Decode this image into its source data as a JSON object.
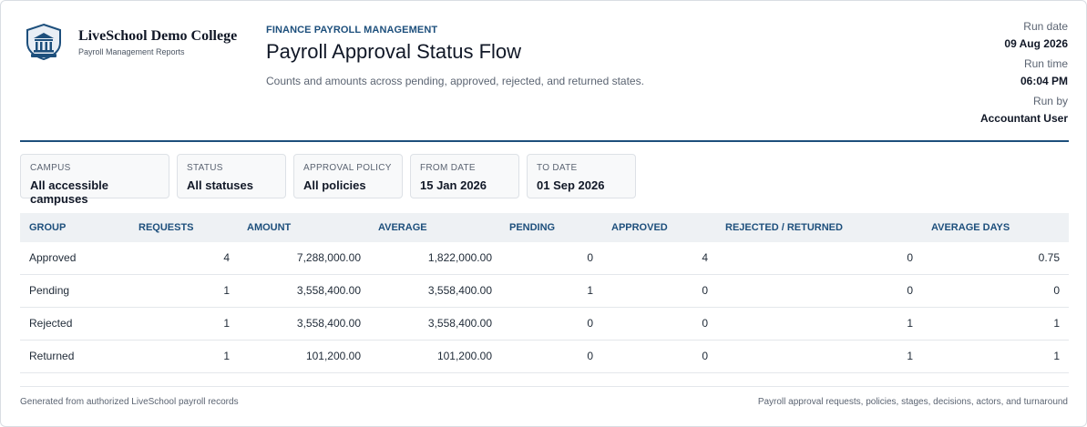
{
  "org": {
    "name": "LiveSchool Demo College",
    "sub": "Payroll Management Reports"
  },
  "header": {
    "eyebrow": "FINANCE PAYROLL MANAGEMENT",
    "title": "Payroll Approval Status Flow",
    "subtitle": "Counts and amounts across pending, approved, rejected, and returned states."
  },
  "run": {
    "date_label": "Run date",
    "date": "09 Aug 2026",
    "time_label": "Run time",
    "time": "06:04 PM",
    "by_label": "Run by",
    "by": "Accountant User"
  },
  "filters": [
    {
      "label": "CAMPUS",
      "value": "All accessible campuses"
    },
    {
      "label": "STATUS",
      "value": "All statuses"
    },
    {
      "label": "APPROVAL POLICY",
      "value": "All policies"
    },
    {
      "label": "FROM DATE",
      "value": "15 Jan 2026"
    },
    {
      "label": "TO DATE",
      "value": "01 Sep 2026"
    }
  ],
  "table": {
    "columns": [
      "GROUP",
      "REQUESTS",
      "AMOUNT",
      "AVERAGE",
      "PENDING",
      "APPROVED",
      "REJECTED / RETURNED",
      "AVERAGE DAYS"
    ],
    "rows": [
      [
        "Approved",
        "4",
        "7,288,000.00",
        "1,822,000.00",
        "0",
        "4",
        "0",
        "0.75"
      ],
      [
        "Pending",
        "1",
        "3,558,400.00",
        "3,558,400.00",
        "1",
        "0",
        "0",
        "0"
      ],
      [
        "Rejected",
        "1",
        "3,558,400.00",
        "3,558,400.00",
        "0",
        "0",
        "1",
        "1"
      ],
      [
        "Returned",
        "1",
        "101,200.00",
        "101,200.00",
        "0",
        "0",
        "1",
        "1"
      ]
    ]
  },
  "footer": {
    "left": "Generated from authorized LiveSchool payroll records",
    "right": "Payroll approval requests, policies, stages, decisions, actors, and turnaround"
  },
  "colors": {
    "accent": "#1d4f7c",
    "header_bg": "#eef1f4",
    "border": "#dde1e6"
  },
  "icons": {
    "logo": "college-crest-icon"
  }
}
